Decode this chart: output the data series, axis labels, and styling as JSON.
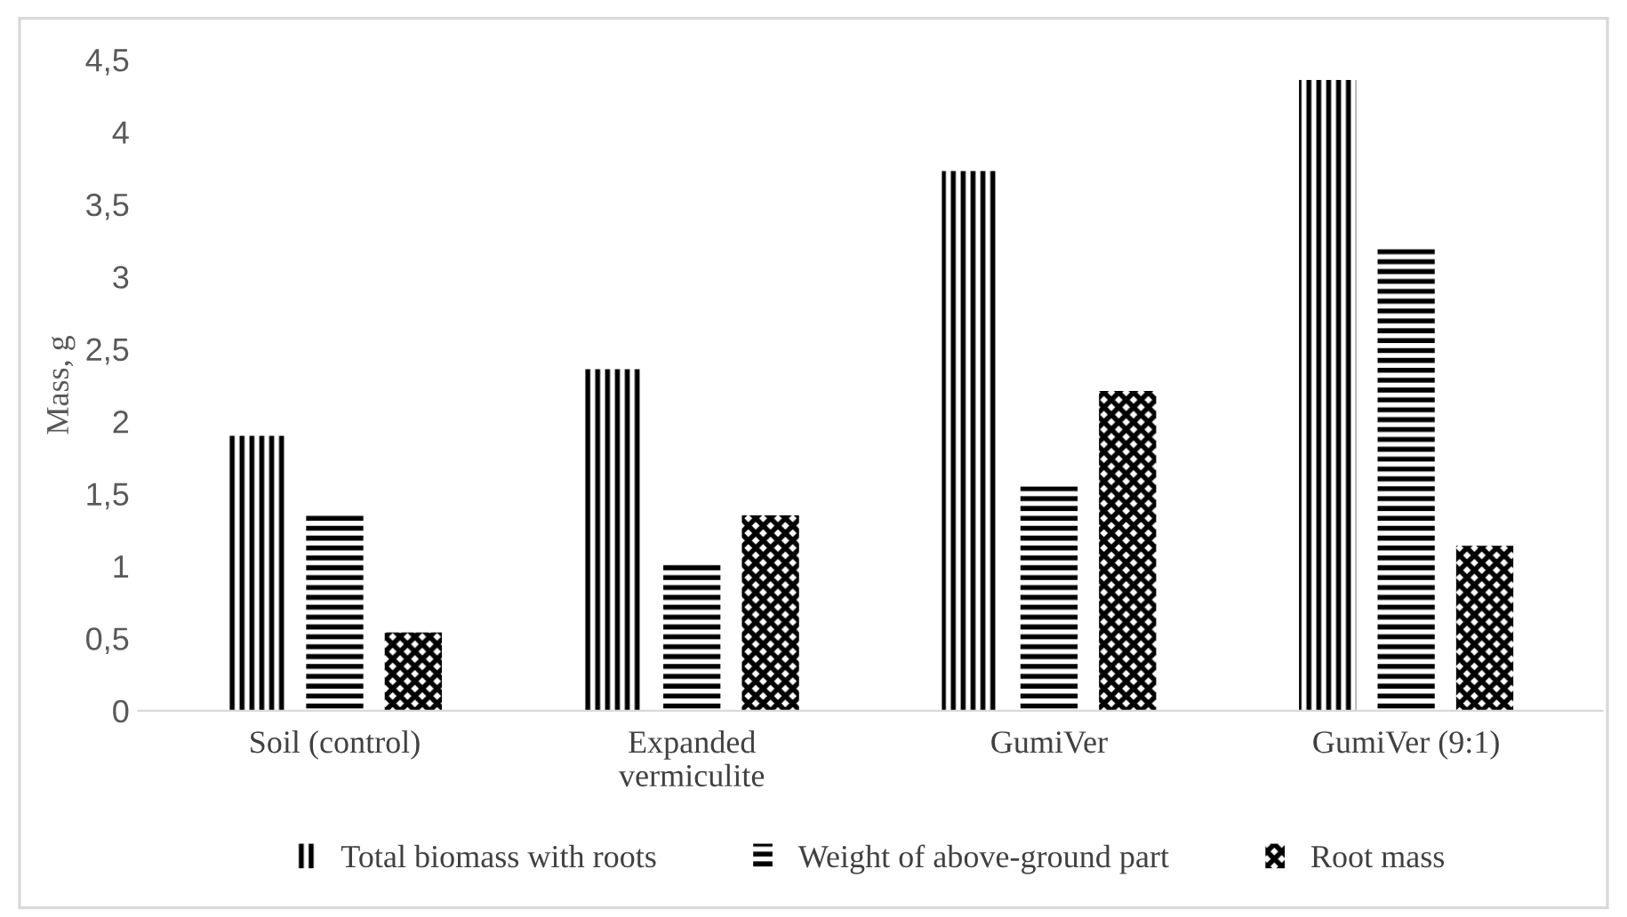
{
  "chart_data": {
    "type": "bar",
    "ylabel": "Mass, g",
    "categories": [
      "Soil (control)",
      "Expanded\nvermiculite",
      "GumiVer",
      "GumiVer (9:1)"
    ],
    "series": [
      {
        "name": "Total biomass with roots",
        "color": "#000000",
        "values": [
          1.9,
          2.36,
          3.73,
          4.36
        ]
      },
      {
        "name": "Weight of above-ground part",
        "color": "#000000",
        "values": [
          1.37,
          1.02,
          1.55,
          3.21
        ]
      },
      {
        "name": "Root mass",
        "color": "#000000",
        "values": [
          0.54,
          1.35,
          2.21,
          1.14
        ]
      }
    ],
    "ylim": [
      0,
      4.5
    ],
    "yticks": [
      0,
      {
        "value": 0.5,
        "label": "0,5"
      },
      1,
      {
        "value": 1.5,
        "label": "1,5"
      },
      2,
      {
        "value": 2.5,
        "label": "2,5"
      },
      3,
      {
        "value": 3.5,
        "label": "3,5"
      },
      4,
      {
        "value": 4.5,
        "label": "4,5"
      }
    ],
    "grid": false,
    "legend": "bottom"
  }
}
